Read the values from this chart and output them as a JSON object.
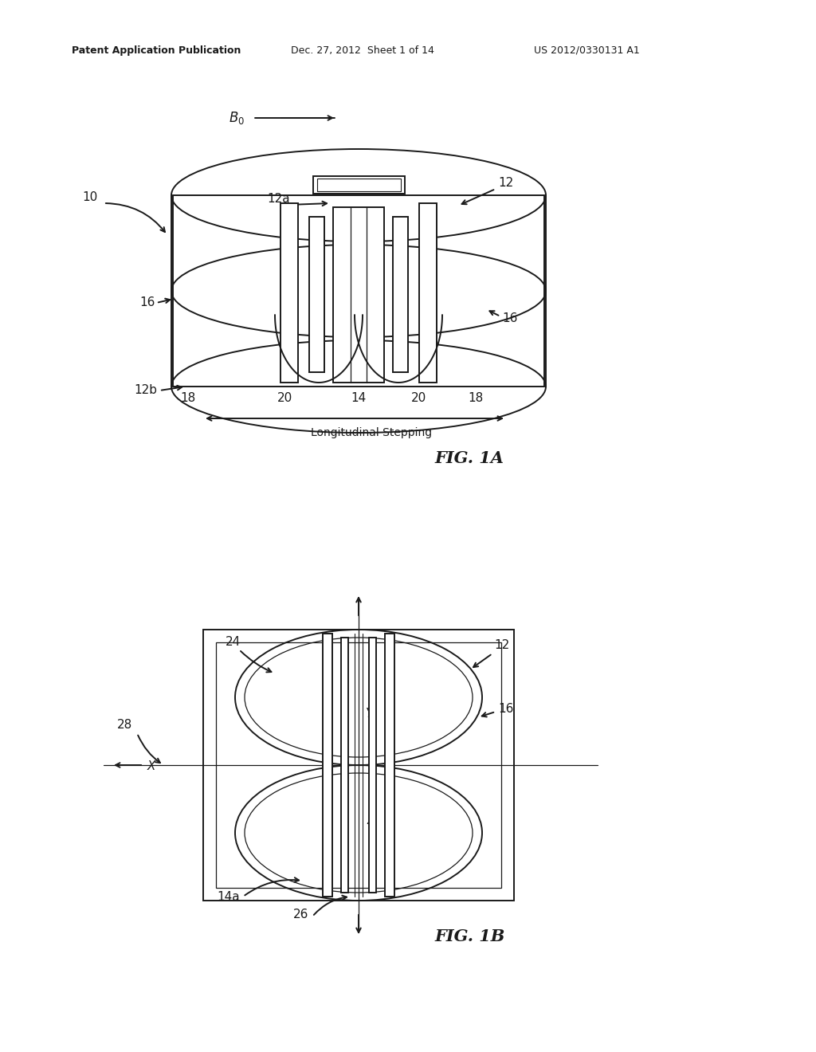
{
  "bg_color": "#ffffff",
  "line_color": "#1a1a1a",
  "header_text1": "Patent Application Publication",
  "header_text2": "Dec. 27, 2012  Sheet 1 of 14",
  "header_text3": "US 2012/0330131 A1",
  "fig1a_label": "FIG. 1A",
  "fig1b_label": "FIG. 1B",
  "lw": 1.4
}
